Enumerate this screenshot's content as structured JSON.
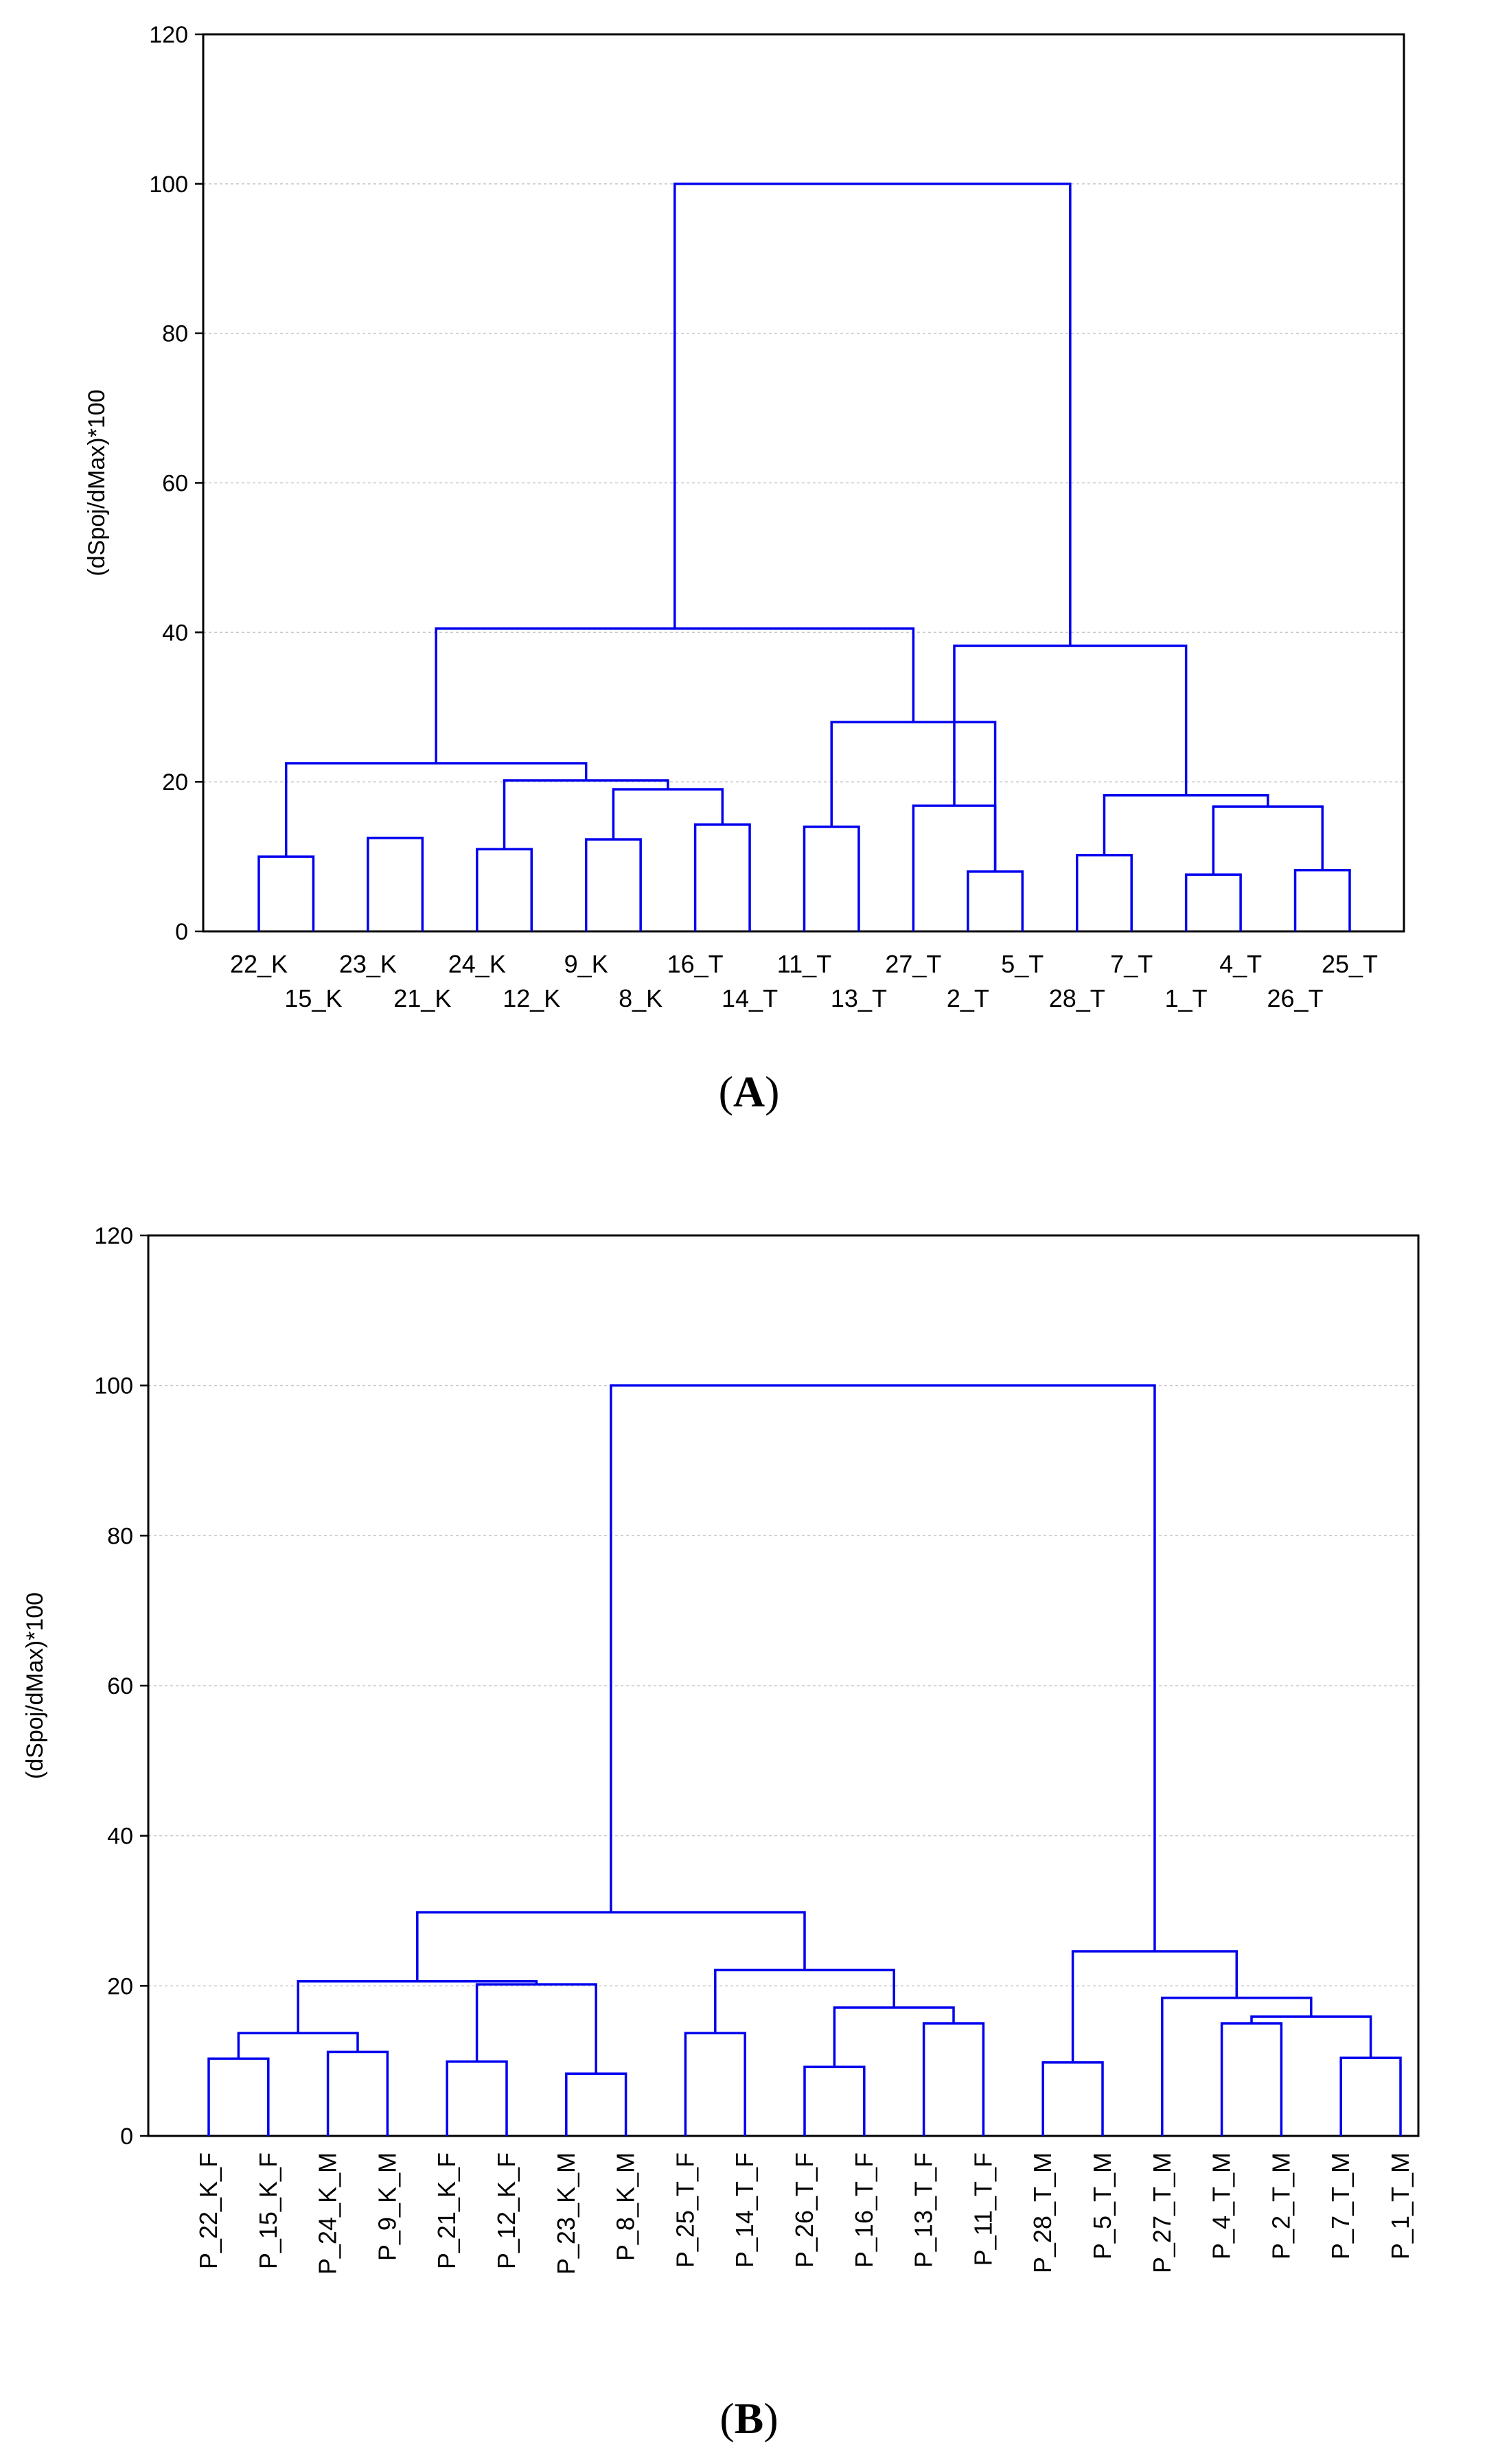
{
  "chart_data": [
    {
      "type": "dendrogram",
      "panel_label": "A",
      "ylabel": "(dSpoj/dMax)*100",
      "ylim": [
        0,
        120
      ],
      "yticks": [
        0,
        20,
        40,
        60,
        80,
        100,
        120
      ],
      "grid": true,
      "leaves": [
        "22_K",
        "15_K",
        "23_K",
        "21_K",
        "24_K",
        "12_K",
        "9_K",
        "8_K",
        "16_T",
        "14_T",
        "11_T",
        "13_T",
        "27_T",
        "2_T",
        "5_T",
        "28_T",
        "7_T",
        "1_T",
        "4_T",
        "26_T",
        "25_T"
      ],
      "merges": [
        [
          0,
          1,
          10
        ],
        [
          2,
          3,
          12.5
        ],
        [
          4,
          5,
          11
        ],
        [
          6,
          7,
          12.3
        ],
        [
          8,
          9,
          14.3
        ],
        [
          10,
          11,
          14
        ],
        [
          13,
          14,
          8
        ],
        [
          15,
          16,
          10.2
        ],
        [
          17,
          18,
          7.6
        ],
        [
          19,
          20,
          8.2
        ],
        [
          24,
          25,
          19
        ],
        [
          23,
          31,
          20.2
        ],
        [
          21,
          32,
          22.5
        ],
        [
          26,
          27,
          28
        ],
        [
          33,
          34,
          40.5
        ],
        [
          12,
          27,
          16.8
        ],
        [
          29,
          30,
          16.7
        ],
        [
          28,
          37,
          18.2
        ],
        [
          36,
          38,
          38.2
        ],
        [
          35,
          39,
          100
        ]
      ]
    },
    {
      "type": "dendrogram",
      "panel_label": "B",
      "ylabel": "(dSpoj/dMax)*100",
      "ylim": [
        0,
        120
      ],
      "yticks": [
        0,
        20,
        40,
        60,
        80,
        100,
        120
      ],
      "grid": true,
      "leaves": [
        "P_22_K_F",
        "P_15_K_F",
        "P_24_K_M",
        "P_9_K_M",
        "P_21_K_F",
        "P_12_K_F",
        "P_23_K_M",
        "P_8_K_M",
        "P_25_T_F",
        "P_14_T_F",
        "P_26_T_F",
        "P_16_T_F",
        "P_13_T_F",
        "P_11_T_F",
        "P_28_T_M",
        "P_5_T_M",
        "P_27_T_M",
        "P_4_T_M",
        "P_2_T_M",
        "P_7_T_M",
        "P_1_T_M"
      ],
      "merges": [
        [
          0,
          1,
          10.3
        ],
        [
          2,
          3,
          11.2
        ],
        [
          4,
          5,
          9.9
        ],
        [
          6,
          7,
          8.3
        ],
        [
          8,
          9,
          13.7
        ],
        [
          10,
          11,
          9.2
        ],
        [
          12,
          13,
          15
        ],
        [
          14,
          15,
          9.8
        ],
        [
          17,
          18,
          15
        ],
        [
          19,
          20,
          10.4
        ],
        [
          21,
          22,
          13.7
        ],
        [
          23,
          24,
          20.2
        ],
        [
          31,
          32,
          20.6
        ],
        [
          26,
          27,
          17.1
        ],
        [
          25,
          34,
          22.1
        ],
        [
          33,
          35,
          29.8
        ],
        [
          29,
          30,
          15.9
        ],
        [
          16,
          37,
          18.4
        ],
        [
          28,
          38,
          24.6
        ],
        [
          36,
          39,
          100
        ]
      ]
    }
  ]
}
